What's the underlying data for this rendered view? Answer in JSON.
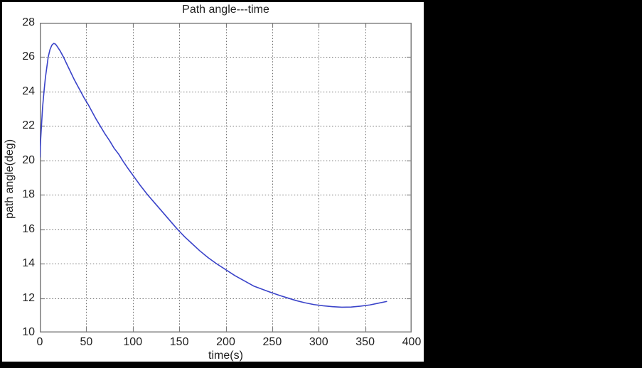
{
  "window": {
    "background_color": "#000000"
  },
  "figure": {
    "background_color": "#ffffff",
    "frame_color": "#7d7d7d",
    "grid_color": "#6e6e6e",
    "text_color": "#1f1f1f",
    "line_color": "#3a43c9"
  },
  "chart_data": {
    "type": "line",
    "title": "Path angle---time",
    "xlabel": "time(s)",
    "ylabel": "path angle(deg)",
    "xlim": [
      0,
      400
    ],
    "ylim": [
      10,
      28
    ],
    "x_ticks": [
      0,
      50,
      100,
      150,
      200,
      250,
      300,
      350,
      400
    ],
    "y_ticks": [
      10,
      12,
      14,
      16,
      18,
      20,
      22,
      24,
      26,
      28
    ],
    "grid": true,
    "grid_style": "dotted",
    "legend_position": "none",
    "series": [
      {
        "name": "path angle",
        "color": "#3a43c9",
        "points": [
          [
            0,
            20.2
          ],
          [
            1,
            21.3
          ],
          [
            2,
            22.2
          ],
          [
            3,
            23.1
          ],
          [
            4.5,
            24.0
          ],
          [
            6,
            24.8
          ],
          [
            7.5,
            25.4
          ],
          [
            9,
            26.0
          ],
          [
            11,
            26.45
          ],
          [
            13,
            26.7
          ],
          [
            15,
            26.8
          ],
          [
            17,
            26.75
          ],
          [
            19,
            26.6
          ],
          [
            22,
            26.35
          ],
          [
            25.5,
            26.0
          ],
          [
            29,
            25.6
          ],
          [
            33,
            25.15
          ],
          [
            37,
            24.7
          ],
          [
            40,
            24.4
          ],
          [
            44,
            24.0
          ],
          [
            48,
            23.6
          ],
          [
            52,
            23.25
          ],
          [
            56,
            22.85
          ],
          [
            60,
            22.45
          ],
          [
            65,
            22.0
          ],
          [
            70,
            21.55
          ],
          [
            75,
            21.15
          ],
          [
            80,
            20.7
          ],
          [
            85,
            20.35
          ],
          [
            89,
            20.0
          ],
          [
            94,
            19.6
          ],
          [
            100,
            19.15
          ],
          [
            108,
            18.55
          ],
          [
            116,
            18.0
          ],
          [
            124,
            17.5
          ],
          [
            132,
            17.0
          ],
          [
            140,
            16.5
          ],
          [
            148,
            16.0
          ],
          [
            156,
            15.55
          ],
          [
            164,
            15.15
          ],
          [
            172,
            14.75
          ],
          [
            181,
            14.35
          ],
          [
            190,
            14.0
          ],
          [
            200,
            13.65
          ],
          [
            210,
            13.3
          ],
          [
            220,
            13.0
          ],
          [
            230,
            12.7
          ],
          [
            240,
            12.5
          ],
          [
            250,
            12.3
          ],
          [
            258,
            12.15
          ],
          [
            267,
            12.0
          ],
          [
            276,
            11.85
          ],
          [
            285,
            11.73
          ],
          [
            295,
            11.62
          ],
          [
            305,
            11.55
          ],
          [
            315,
            11.5
          ],
          [
            325,
            11.47
          ],
          [
            335,
            11.48
          ],
          [
            345,
            11.53
          ],
          [
            355,
            11.6
          ],
          [
            364,
            11.7
          ],
          [
            373,
            11.8
          ]
        ]
      }
    ]
  }
}
